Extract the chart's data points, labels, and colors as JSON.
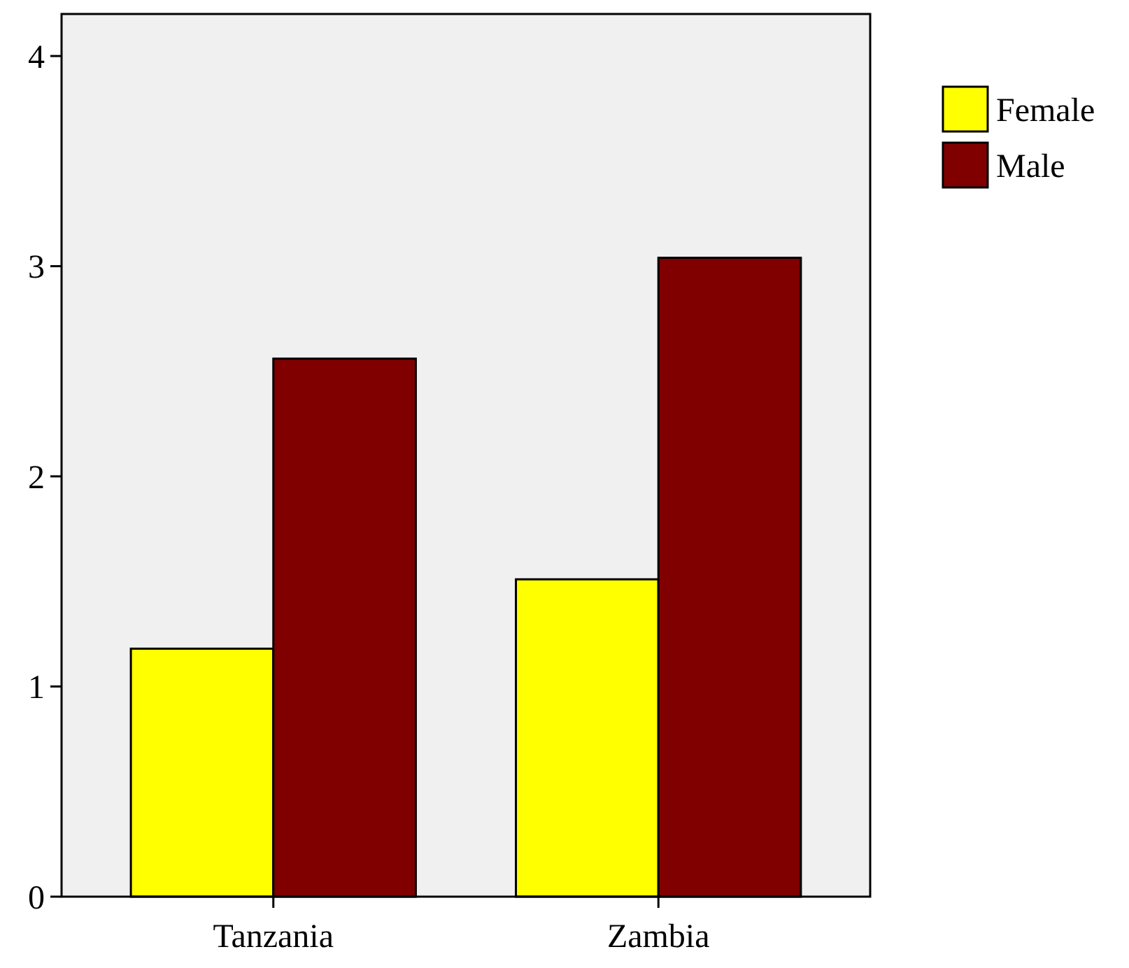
{
  "chart_data": {
    "type": "bar",
    "categories": [
      "Tanzania",
      "Zambia"
    ],
    "series": [
      {
        "name": "Female",
        "color": "#ffff00",
        "values": [
          1.18,
          1.51
        ]
      },
      {
        "name": "Male",
        "color": "#800000",
        "values": [
          2.56,
          3.04
        ]
      }
    ],
    "ylim": [
      0,
      4.2
    ],
    "yticks": [
      0,
      1,
      2,
      3,
      4
    ],
    "grid": false,
    "legend": "top right"
  }
}
